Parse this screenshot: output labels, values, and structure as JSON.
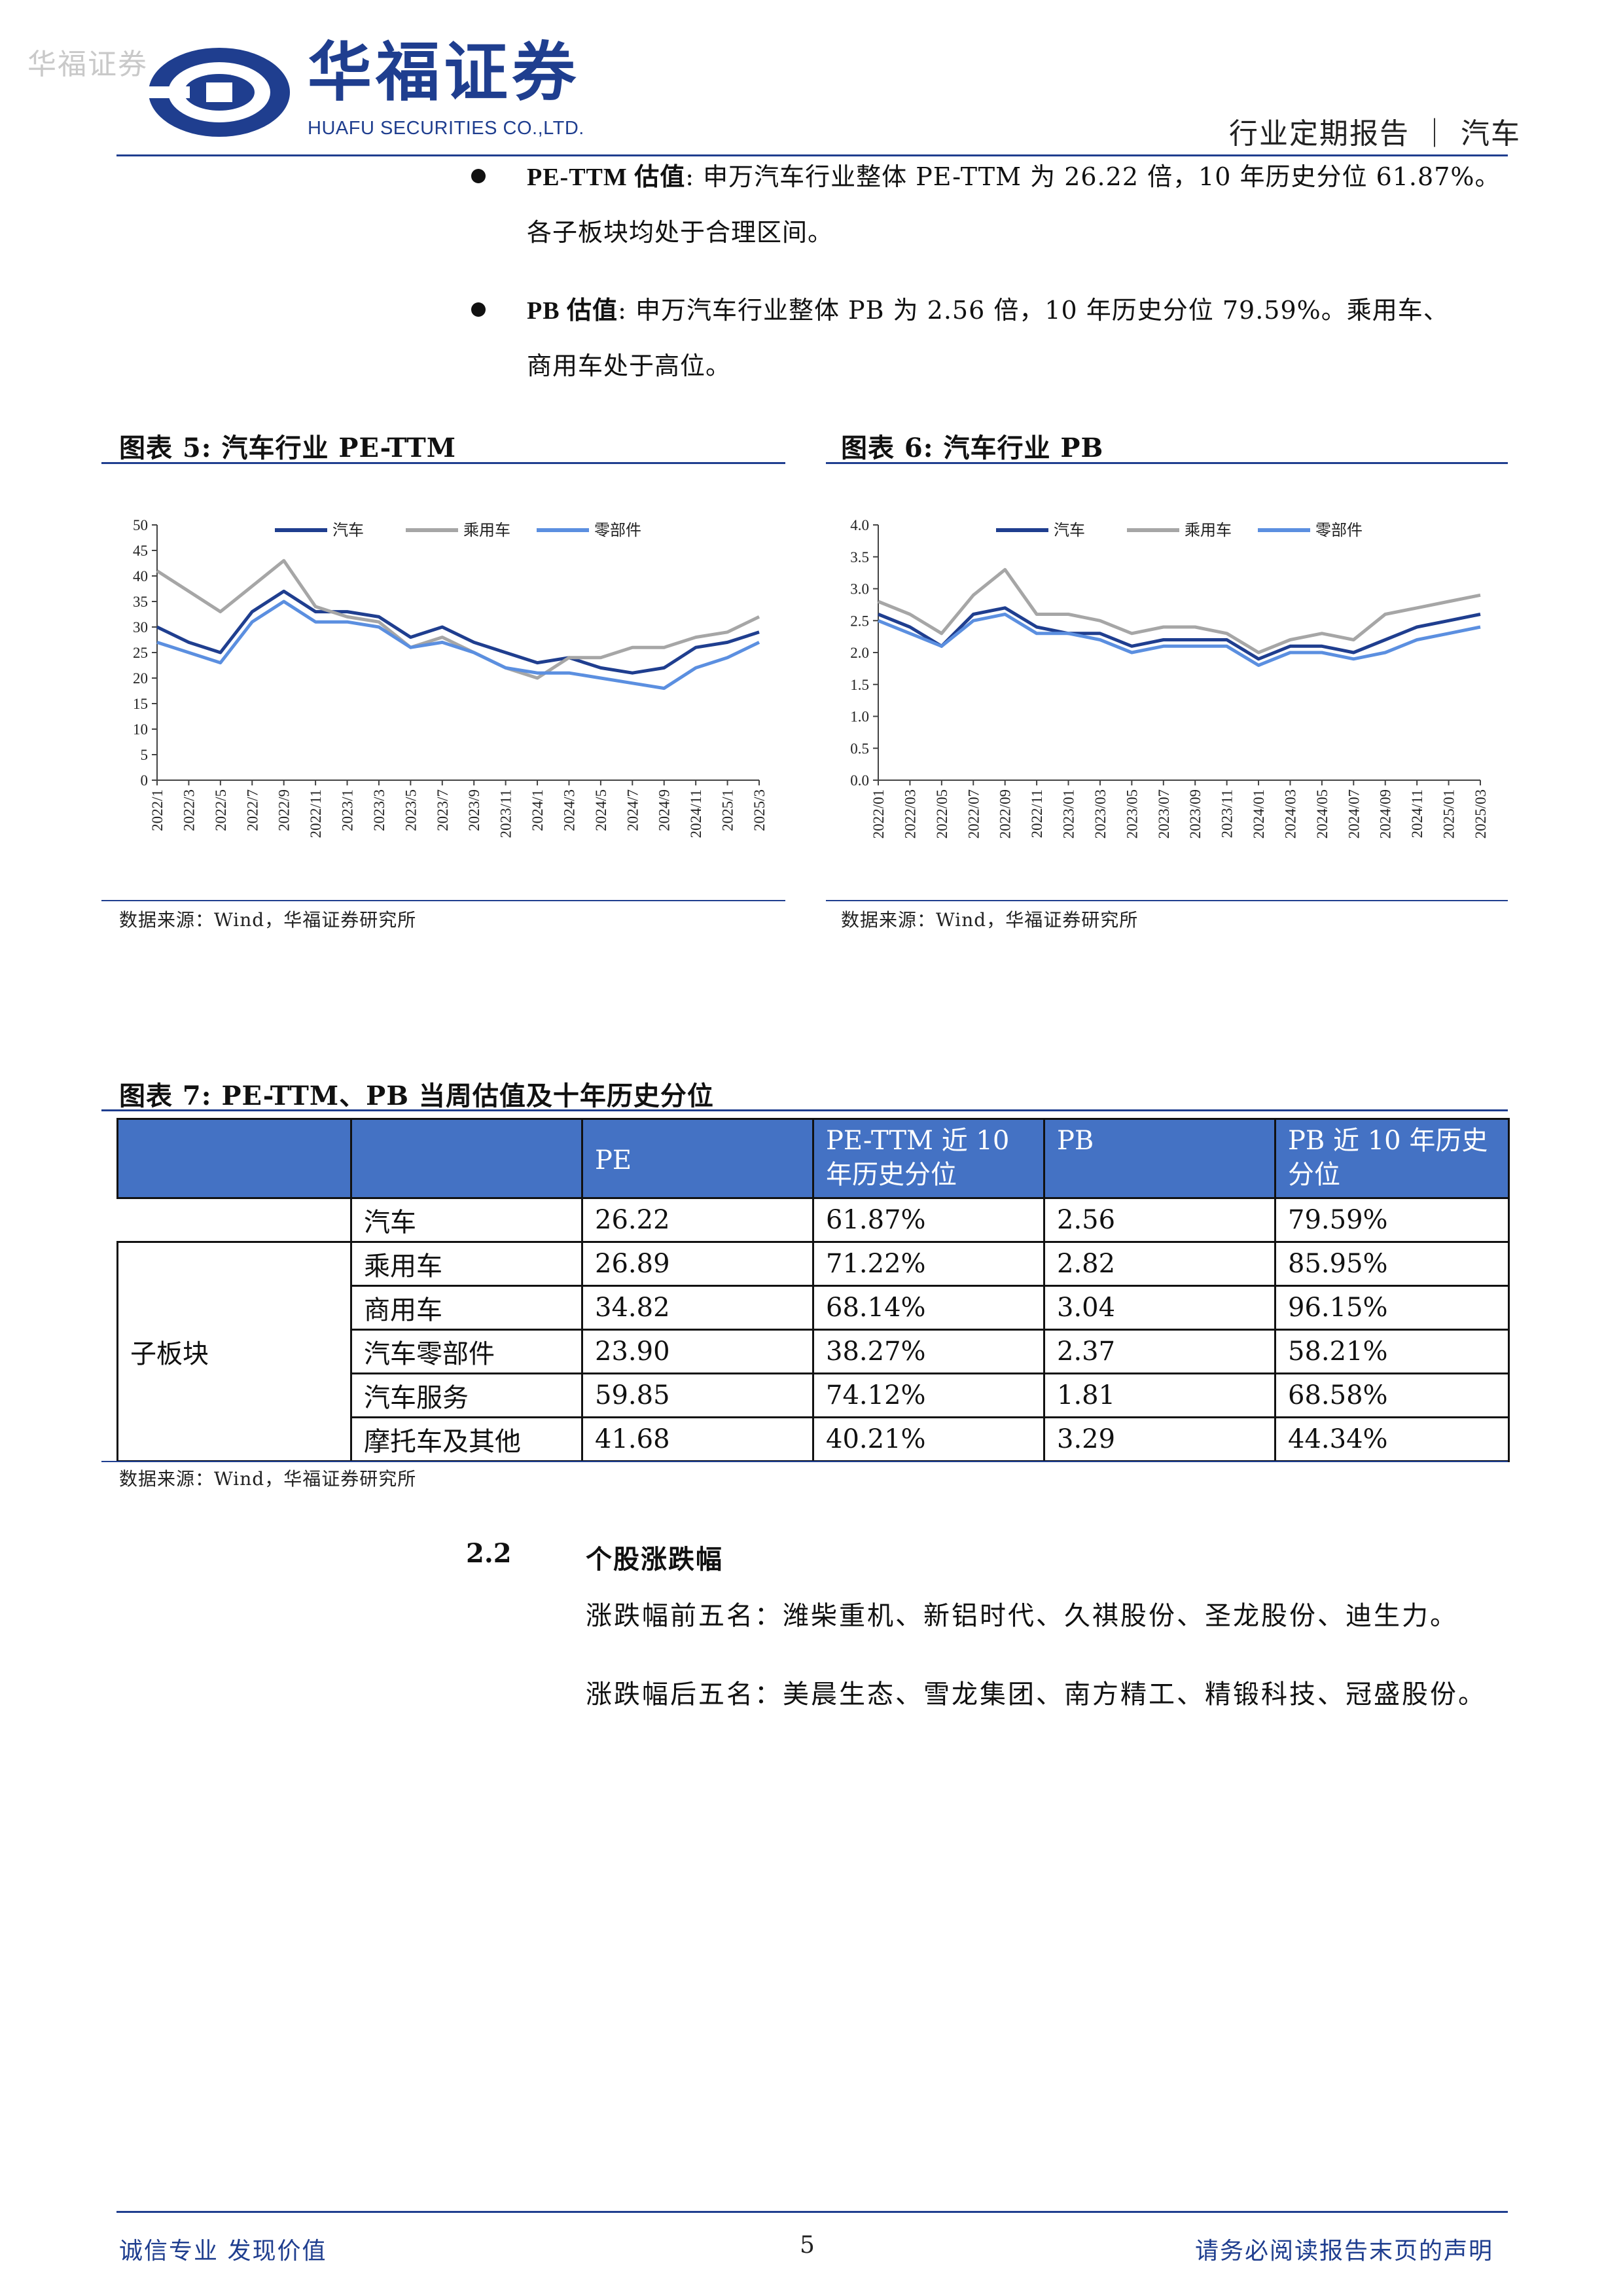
{
  "header": {
    "watermark": "华福证券",
    "logo_cn": "华福证券",
    "logo_en": "HUAFU SECURITIES CO.,LTD.",
    "report_type": "行业定期报告 ｜ 汽车",
    "brand_color": "#1f3e8f"
  },
  "bullets": [
    {
      "label": "PE-TTM 估值",
      "text": ": 申万汽车行业整体 PE-TTM 为 26.22 倍，10 年历史分位 61.87%。",
      "text2": "各子板块均处于合理区间。"
    },
    {
      "label": "PB 估值",
      "text": ": 申万汽车行业整体 PB 为 2.56 倍，10 年历史分位 79.59%。乘用车、",
      "text2": "商用车处于高位。"
    }
  ],
  "figure5": {
    "title": "图表 5:  汽车行业 PE-TTM",
    "source": "数据来源：Wind，华福证券研究所"
  },
  "figure6": {
    "title": "图表 6:  汽车行业 PB",
    "source": "数据来源：Wind，华福证券研究所"
  },
  "chart_data": [
    {
      "type": "line",
      "x": [
        "2022/1",
        "2022/3",
        "2022/5",
        "2022/7",
        "2022/9",
        "2022/11",
        "2023/1",
        "2023/3",
        "2023/5",
        "2023/7",
        "2023/9",
        "2023/11",
        "2024/1",
        "2024/3",
        "2024/5",
        "2024/7",
        "2024/9",
        "2024/11",
        "2025/1",
        "2025/3"
      ],
      "series": [
        {
          "name": "汽车",
          "color": "#1f3e8f",
          "values": [
            30,
            27,
            25,
            33,
            37,
            33,
            33,
            32,
            28,
            30,
            27,
            25,
            23,
            24,
            22,
            21,
            22,
            26,
            27,
            29
          ]
        },
        {
          "name": "乘用车",
          "color": "#a6a6a6",
          "values": [
            41,
            37,
            33,
            38,
            43,
            34,
            32,
            31,
            26,
            28,
            25,
            22,
            20,
            24,
            24,
            26,
            26,
            28,
            29,
            32
          ]
        },
        {
          "name": "零部件",
          "color": "#5b8fe0",
          "values": [
            27,
            25,
            23,
            31,
            35,
            31,
            31,
            30,
            26,
            27,
            25,
            22,
            21,
            21,
            20,
            19,
            18,
            22,
            24,
            27
          ]
        }
      ],
      "ylim": [
        0,
        50
      ],
      "yticks": [
        0,
        5,
        10,
        15,
        20,
        25,
        30,
        35,
        40,
        45,
        50
      ],
      "legend": "top"
    },
    {
      "type": "line",
      "x": [
        "2022/01",
        "2022/03",
        "2022/05",
        "2022/07",
        "2022/09",
        "2022/11",
        "2023/01",
        "2023/03",
        "2023/05",
        "2023/07",
        "2023/09",
        "2023/11",
        "2024/01",
        "2024/03",
        "2024/05",
        "2024/07",
        "2024/09",
        "2024/11",
        "2025/01",
        "2025/03"
      ],
      "series": [
        {
          "name": "汽车",
          "color": "#1f3e8f",
          "values": [
            2.6,
            2.4,
            2.1,
            2.6,
            2.7,
            2.4,
            2.3,
            2.3,
            2.1,
            2.2,
            2.2,
            2.2,
            1.9,
            2.1,
            2.1,
            2.0,
            2.2,
            2.4,
            2.5,
            2.6
          ]
        },
        {
          "name": "乘用车",
          "color": "#a6a6a6",
          "values": [
            2.8,
            2.6,
            2.3,
            2.9,
            3.3,
            2.6,
            2.6,
            2.5,
            2.3,
            2.4,
            2.4,
            2.3,
            2.0,
            2.2,
            2.3,
            2.2,
            2.6,
            2.7,
            2.8,
            2.9
          ]
        },
        {
          "name": "零部件",
          "color": "#5b8fe0",
          "values": [
            2.5,
            2.3,
            2.1,
            2.5,
            2.6,
            2.3,
            2.3,
            2.2,
            2.0,
            2.1,
            2.1,
            2.1,
            1.8,
            2.0,
            2.0,
            1.9,
            2.0,
            2.2,
            2.3,
            2.4
          ]
        }
      ],
      "ylim": [
        0,
        4
      ],
      "yticks": [
        "0.0",
        "0.5",
        "1.0",
        "1.5",
        "2.0",
        "2.5",
        "3.0",
        "3.5",
        "4.0"
      ],
      "legend": "top"
    }
  ],
  "figure7": {
    "title": "图表 7:  PE-TTM、PB 当周估值及十年历史分位",
    "headers": [
      "",
      "",
      "PE",
      "PE-TTM 近 10 年历史分位",
      "PB",
      "PB 近 10 年历史分位"
    ],
    "group_label": "子板块",
    "rows": [
      [
        "汽车",
        "26.22",
        "61.87%",
        "2.56",
        "79.59%"
      ],
      [
        "乘用车",
        "26.89",
        "71.22%",
        "2.82",
        "85.95%"
      ],
      [
        "商用车",
        "34.82",
        "68.14%",
        "3.04",
        "96.15%"
      ],
      [
        "汽车零部件",
        "23.90",
        "38.27%",
        "2.37",
        "58.21%"
      ],
      [
        "汽车服务",
        "59.85",
        "74.12%",
        "1.81",
        "68.58%"
      ],
      [
        "摩托车及其他",
        "41.68",
        "40.21%",
        "3.29",
        "44.34%"
      ]
    ],
    "source": "数据来源：Wind，华福证券研究所"
  },
  "section": {
    "number": "2.2",
    "title": "个股涨跌幅",
    "line1": "涨跌幅前五名：潍柴重机、新铝时代、久祺股份、圣龙股份、迪生力。",
    "line2": "涨跌幅后五名：美晨生态、雪龙集团、南方精工、精锻科技、冠盛股份。"
  },
  "footer": {
    "left": "诚信专业  发现价值",
    "page": "5",
    "right": "请务必阅读报告末页的声明"
  }
}
